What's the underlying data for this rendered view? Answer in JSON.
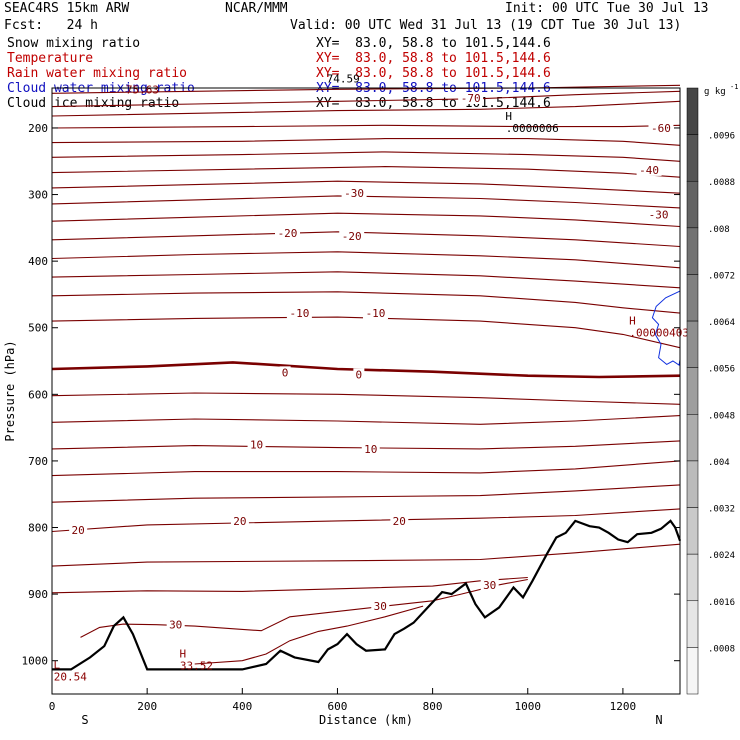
{
  "header": {
    "model": "SEAC4RS 15km ARW",
    "org": "NCAR/MMM",
    "init": "Init: 00 UTC Tue 30 Jul 13",
    "fcst": "Fcst:   24 h",
    "valid": "Valid: 00 UTC Wed 31 Jul 13 (19 CDT Tue 30 Jul 13)"
  },
  "fields": [
    {
      "name": "Snow mixing ratio",
      "xy": "XY=  83.0, 58.8 to 101.5,144.6",
      "color": "#000000"
    },
    {
      "name": "Temperature",
      "xy": "XY=  83.0, 58.8 to 101.5,144.6",
      "color": "#c00000"
    },
    {
      "name": "Rain water mixing ratio",
      "xy": "XY=  83.0, 58.8 to 101.5,144.6",
      "color": "#c00000"
    },
    {
      "name": "Cloud water mixing ratio",
      "xy": "XY=  83.0, 58.8 to 101.5,144.6",
      "color": "#1010c0"
    },
    {
      "name": "Cloud ice mixing ratio",
      "xy": "XY=  83.0, 58.8 to 101.5,144.6",
      "color": "#000000"
    }
  ],
  "chart_data": {
    "type": "contour",
    "xlabel": "Distance (km)",
    "ylabel": "Pressure (hPa)",
    "xlim": [
      0,
      1320
    ],
    "ylim": [
      1050,
      140
    ],
    "xticks": [
      0,
      200,
      400,
      600,
      800,
      1000,
      1200
    ],
    "yticks": [
      200,
      300,
      400,
      500,
      600,
      700,
      800,
      900,
      1000
    ],
    "x_end_labels": {
      "left": "S",
      "right": "N"
    },
    "colorbar": {
      "unit": "g kg",
      "unit_exp": "-1",
      "ticks": [
        ".0096",
        ".0088",
        ".008",
        ".0072",
        ".0064",
        ".0056",
        ".0048",
        ".004",
        ".0032",
        ".0024",
        ".0016",
        ".0008"
      ]
    },
    "temperature_labels": [
      {
        "text": "-70",
        "x": 880,
        "p": 155
      },
      {
        "text": "-60",
        "x": 1280,
        "p": 200
      },
      {
        "text": "-40",
        "x": 1255,
        "p": 263
      },
      {
        "text": "-30",
        "x": 635,
        "p": 298
      },
      {
        "text": "-30",
        "x": 1275,
        "p": 330
      },
      {
        "text": "-20",
        "x": 495,
        "p": 358
      },
      {
        "text": "-20",
        "x": 630,
        "p": 362
      },
      {
        "text": "-10",
        "x": 520,
        "p": 478
      },
      {
        "text": "-10",
        "x": 680,
        "p": 478
      },
      {
        "text": "0",
        "x": 490,
        "p": 567
      },
      {
        "text": "0",
        "x": 645,
        "p": 570
      },
      {
        "text": "10",
        "x": 430,
        "p": 675
      },
      {
        "text": "10",
        "x": 670,
        "p": 682
      },
      {
        "text": "20",
        "x": 55,
        "p": 804
      },
      {
        "text": "20",
        "x": 395,
        "p": 790
      },
      {
        "text": "20",
        "x": 730,
        "p": 790
      },
      {
        "text": "30",
        "x": 260,
        "p": 946
      },
      {
        "text": "30",
        "x": 690,
        "p": 918
      },
      {
        "text": "30",
        "x": 920,
        "p": 886
      }
    ],
    "extrema": [
      {
        "letter": "H",
        "value": ".0000006",
        "x": 960,
        "p": 188,
        "color": "#000000"
      },
      {
        "letter": "H",
        "value": ".00000403",
        "x": 1220,
        "p": 495,
        "color": "#8b0000"
      },
      {
        "letter": "H",
        "value": "33.52",
        "x": 275,
        "p": 995,
        "color": "#8b0000"
      },
      {
        "letter": "L",
        "value": "20.54",
        "x": 10,
        "p": 1012,
        "color": "#8b0000"
      }
    ],
    "top_labels": [
      {
        "text": "75.63",
        "x": 190,
        "p": 148,
        "color": "#8b0000"
      },
      {
        "text": "74.59",
        "x": 612,
        "p": 132,
        "color": "#000000"
      }
    ],
    "isotherms": [
      {
        "t": -75,
        "points": [
          [
            0,
            148
          ],
          [
            300,
            145
          ],
          [
            600,
            142
          ],
          [
            1000,
            140
          ],
          [
            1320,
            136
          ]
        ]
      },
      {
        "t": -70,
        "points": [
          [
            0,
            168
          ],
          [
            300,
            164
          ],
          [
            600,
            160
          ],
          [
            900,
            156
          ],
          [
            1100,
            150
          ],
          [
            1320,
            145
          ]
        ]
      },
      {
        "t": -65,
        "points": [
          [
            0,
            182
          ],
          [
            300,
            178
          ],
          [
            600,
            174
          ],
          [
            900,
            172
          ],
          [
            1100,
            168
          ],
          [
            1320,
            160
          ]
        ]
      },
      {
        "t": -60,
        "points": [
          [
            0,
            200
          ],
          [
            400,
            198
          ],
          [
            700,
            196
          ],
          [
            1000,
            198
          ],
          [
            1200,
            198
          ],
          [
            1320,
            196
          ]
        ]
      },
      {
        "t": -55,
        "points": [
          [
            0,
            222
          ],
          [
            400,
            220
          ],
          [
            700,
            216
          ],
          [
            1000,
            216
          ],
          [
            1200,
            220
          ],
          [
            1320,
            226
          ]
        ]
      },
      {
        "t": -50,
        "points": [
          [
            0,
            244
          ],
          [
            400,
            240
          ],
          [
            700,
            236
          ],
          [
            1000,
            240
          ],
          [
            1200,
            244
          ],
          [
            1320,
            250
          ]
        ]
      },
      {
        "t": -45,
        "points": [
          [
            0,
            267
          ],
          [
            400,
            262
          ],
          [
            700,
            258
          ],
          [
            1000,
            262
          ],
          [
            1200,
            268
          ],
          [
            1320,
            274
          ]
        ]
      },
      {
        "t": -40,
        "points": [
          [
            0,
            290
          ],
          [
            300,
            285
          ],
          [
            600,
            280
          ],
          [
            900,
            284
          ],
          [
            1100,
            290
          ],
          [
            1320,
            298
          ]
        ]
      },
      {
        "t": -35,
        "points": [
          [
            0,
            314
          ],
          [
            300,
            308
          ],
          [
            600,
            302
          ],
          [
            900,
            306
          ],
          [
            1100,
            312
          ],
          [
            1320,
            320
          ]
        ]
      },
      {
        "t": -30,
        "points": [
          [
            0,
            340
          ],
          [
            300,
            334
          ],
          [
            600,
            328
          ],
          [
            900,
            332
          ],
          [
            1100,
            338
          ],
          [
            1320,
            348
          ]
        ]
      },
      {
        "t": -25,
        "points": [
          [
            0,
            368
          ],
          [
            300,
            362
          ],
          [
            600,
            356
          ],
          [
            900,
            362
          ],
          [
            1100,
            368
          ],
          [
            1320,
            378
          ]
        ]
      },
      {
        "t": -20,
        "points": [
          [
            0,
            396
          ],
          [
            300,
            390
          ],
          [
            600,
            386
          ],
          [
            900,
            392
          ],
          [
            1100,
            398
          ],
          [
            1320,
            410
          ]
        ]
      },
      {
        "t": -15,
        "points": [
          [
            0,
            424
          ],
          [
            300,
            420
          ],
          [
            600,
            416
          ],
          [
            900,
            422
          ],
          [
            1100,
            430
          ],
          [
            1320,
            440
          ]
        ]
      },
      {
        "t": -10,
        "points": [
          [
            0,
            452
          ],
          [
            300,
            448
          ],
          [
            600,
            446
          ],
          [
            900,
            452
          ],
          [
            1100,
            462
          ],
          [
            1200,
            470
          ],
          [
            1320,
            478
          ]
        ]
      },
      {
        "t": -5,
        "points": [
          [
            0,
            490
          ],
          [
            300,
            486
          ],
          [
            600,
            484
          ],
          [
            900,
            490
          ],
          [
            1100,
            500
          ],
          [
            1200,
            510
          ],
          [
            1320,
            530
          ]
        ]
      },
      {
        "t": 0,
        "points": [
          [
            0,
            562
          ],
          [
            200,
            558
          ],
          [
            380,
            552
          ],
          [
            600,
            562
          ],
          [
            800,
            566
          ],
          [
            1000,
            572
          ],
          [
            1150,
            574
          ],
          [
            1320,
            572
          ]
        ],
        "bold": true
      },
      {
        "t": 5,
        "points": [
          [
            0,
            602
          ],
          [
            300,
            598
          ],
          [
            600,
            600
          ],
          [
            900,
            605
          ],
          [
            1100,
            610
          ],
          [
            1320,
            615
          ]
        ]
      },
      {
        "t": 10,
        "points": [
          [
            0,
            642
          ],
          [
            300,
            637
          ],
          [
            600,
            640
          ],
          [
            900,
            645
          ],
          [
            1100,
            640
          ],
          [
            1320,
            632
          ]
        ]
      },
      {
        "t": 12,
        "points": [
          [
            0,
            682
          ],
          [
            300,
            677
          ],
          [
            600,
            680
          ],
          [
            900,
            682
          ],
          [
            1100,
            678
          ],
          [
            1320,
            670
          ]
        ]
      },
      {
        "t": 15,
        "points": [
          [
            0,
            722
          ],
          [
            300,
            716
          ],
          [
            600,
            716
          ],
          [
            900,
            718
          ],
          [
            1100,
            712
          ],
          [
            1320,
            700
          ]
        ]
      },
      {
        "t": 18,
        "points": [
          [
            0,
            762
          ],
          [
            300,
            756
          ],
          [
            600,
            754
          ],
          [
            900,
            752
          ],
          [
            1100,
            745
          ],
          [
            1320,
            736
          ]
        ]
      },
      {
        "t": 20,
        "points": [
          [
            0,
            806
          ],
          [
            200,
            796
          ],
          [
            600,
            790
          ],
          [
            900,
            786
          ],
          [
            1100,
            782
          ],
          [
            1320,
            772
          ]
        ]
      },
      {
        "t": 25,
        "points": [
          [
            0,
            858
          ],
          [
            200,
            852
          ],
          [
            600,
            850
          ],
          [
            900,
            848
          ],
          [
            1100,
            838
          ],
          [
            1320,
            825
          ]
        ]
      },
      {
        "t": 28,
        "points": [
          [
            0,
            898
          ],
          [
            200,
            895
          ],
          [
            400,
            896
          ],
          [
            600,
            892
          ],
          [
            800,
            888
          ],
          [
            900,
            880
          ],
          [
            1000,
            875
          ]
        ]
      },
      {
        "t": 30,
        "points": [
          [
            60,
            965
          ],
          [
            100,
            950
          ],
          [
            150,
            945
          ],
          [
            220,
            946
          ],
          [
            300,
            948
          ],
          [
            440,
            955
          ],
          [
            500,
            934
          ],
          [
            600,
            926
          ],
          [
            700,
            918
          ],
          [
            800,
            910
          ],
          [
            860,
            900
          ],
          [
            940,
            886
          ],
          [
            1000,
            878
          ]
        ]
      },
      {
        "t": 32,
        "points": [
          [
            300,
            1005
          ],
          [
            400,
            1000
          ],
          [
            450,
            990
          ],
          [
            500,
            970
          ],
          [
            560,
            956
          ],
          [
            620,
            948
          ],
          [
            700,
            934
          ],
          [
            780,
            918
          ]
        ]
      }
    ],
    "cloud_contour": [
      [
        1320,
        445
      ],
      [
        1290,
        455
      ],
      [
        1270,
        468
      ],
      [
        1262,
        485
      ],
      [
        1275,
        495
      ],
      [
        1268,
        510
      ],
      [
        1280,
        525
      ],
      [
        1275,
        545
      ],
      [
        1292,
        555
      ],
      [
        1305,
        550
      ],
      [
        1318,
        556
      ],
      [
        1320,
        548
      ]
    ],
    "terrain": [
      [
        0,
        1013
      ],
      [
        40,
        1013
      ],
      [
        80,
        995
      ],
      [
        110,
        978
      ],
      [
        130,
        948
      ],
      [
        150,
        935
      ],
      [
        170,
        960
      ],
      [
        200,
        1013
      ],
      [
        400,
        1013
      ],
      [
        450,
        1005
      ],
      [
        480,
        985
      ],
      [
        510,
        995
      ],
      [
        560,
        1002
      ],
      [
        580,
        983
      ],
      [
        600,
        975
      ],
      [
        620,
        960
      ],
      [
        640,
        975
      ],
      [
        660,
        985
      ],
      [
        700,
        983
      ],
      [
        720,
        960
      ],
      [
        740,
        952
      ],
      [
        760,
        943
      ],
      [
        790,
        920
      ],
      [
        820,
        897
      ],
      [
        840,
        900
      ],
      [
        870,
        884
      ],
      [
        890,
        915
      ],
      [
        910,
        935
      ],
      [
        940,
        920
      ],
      [
        970,
        890
      ],
      [
        990,
        905
      ],
      [
        1010,
        880
      ],
      [
        1040,
        840
      ],
      [
        1060,
        815
      ],
      [
        1080,
        808
      ],
      [
        1100,
        790
      ],
      [
        1130,
        798
      ],
      [
        1150,
        800
      ],
      [
        1170,
        808
      ],
      [
        1190,
        818
      ],
      [
        1210,
        822
      ],
      [
        1230,
        810
      ],
      [
        1260,
        808
      ],
      [
        1280,
        802
      ],
      [
        1300,
        790
      ],
      [
        1310,
        800
      ],
      [
        1320,
        820
      ]
    ]
  }
}
